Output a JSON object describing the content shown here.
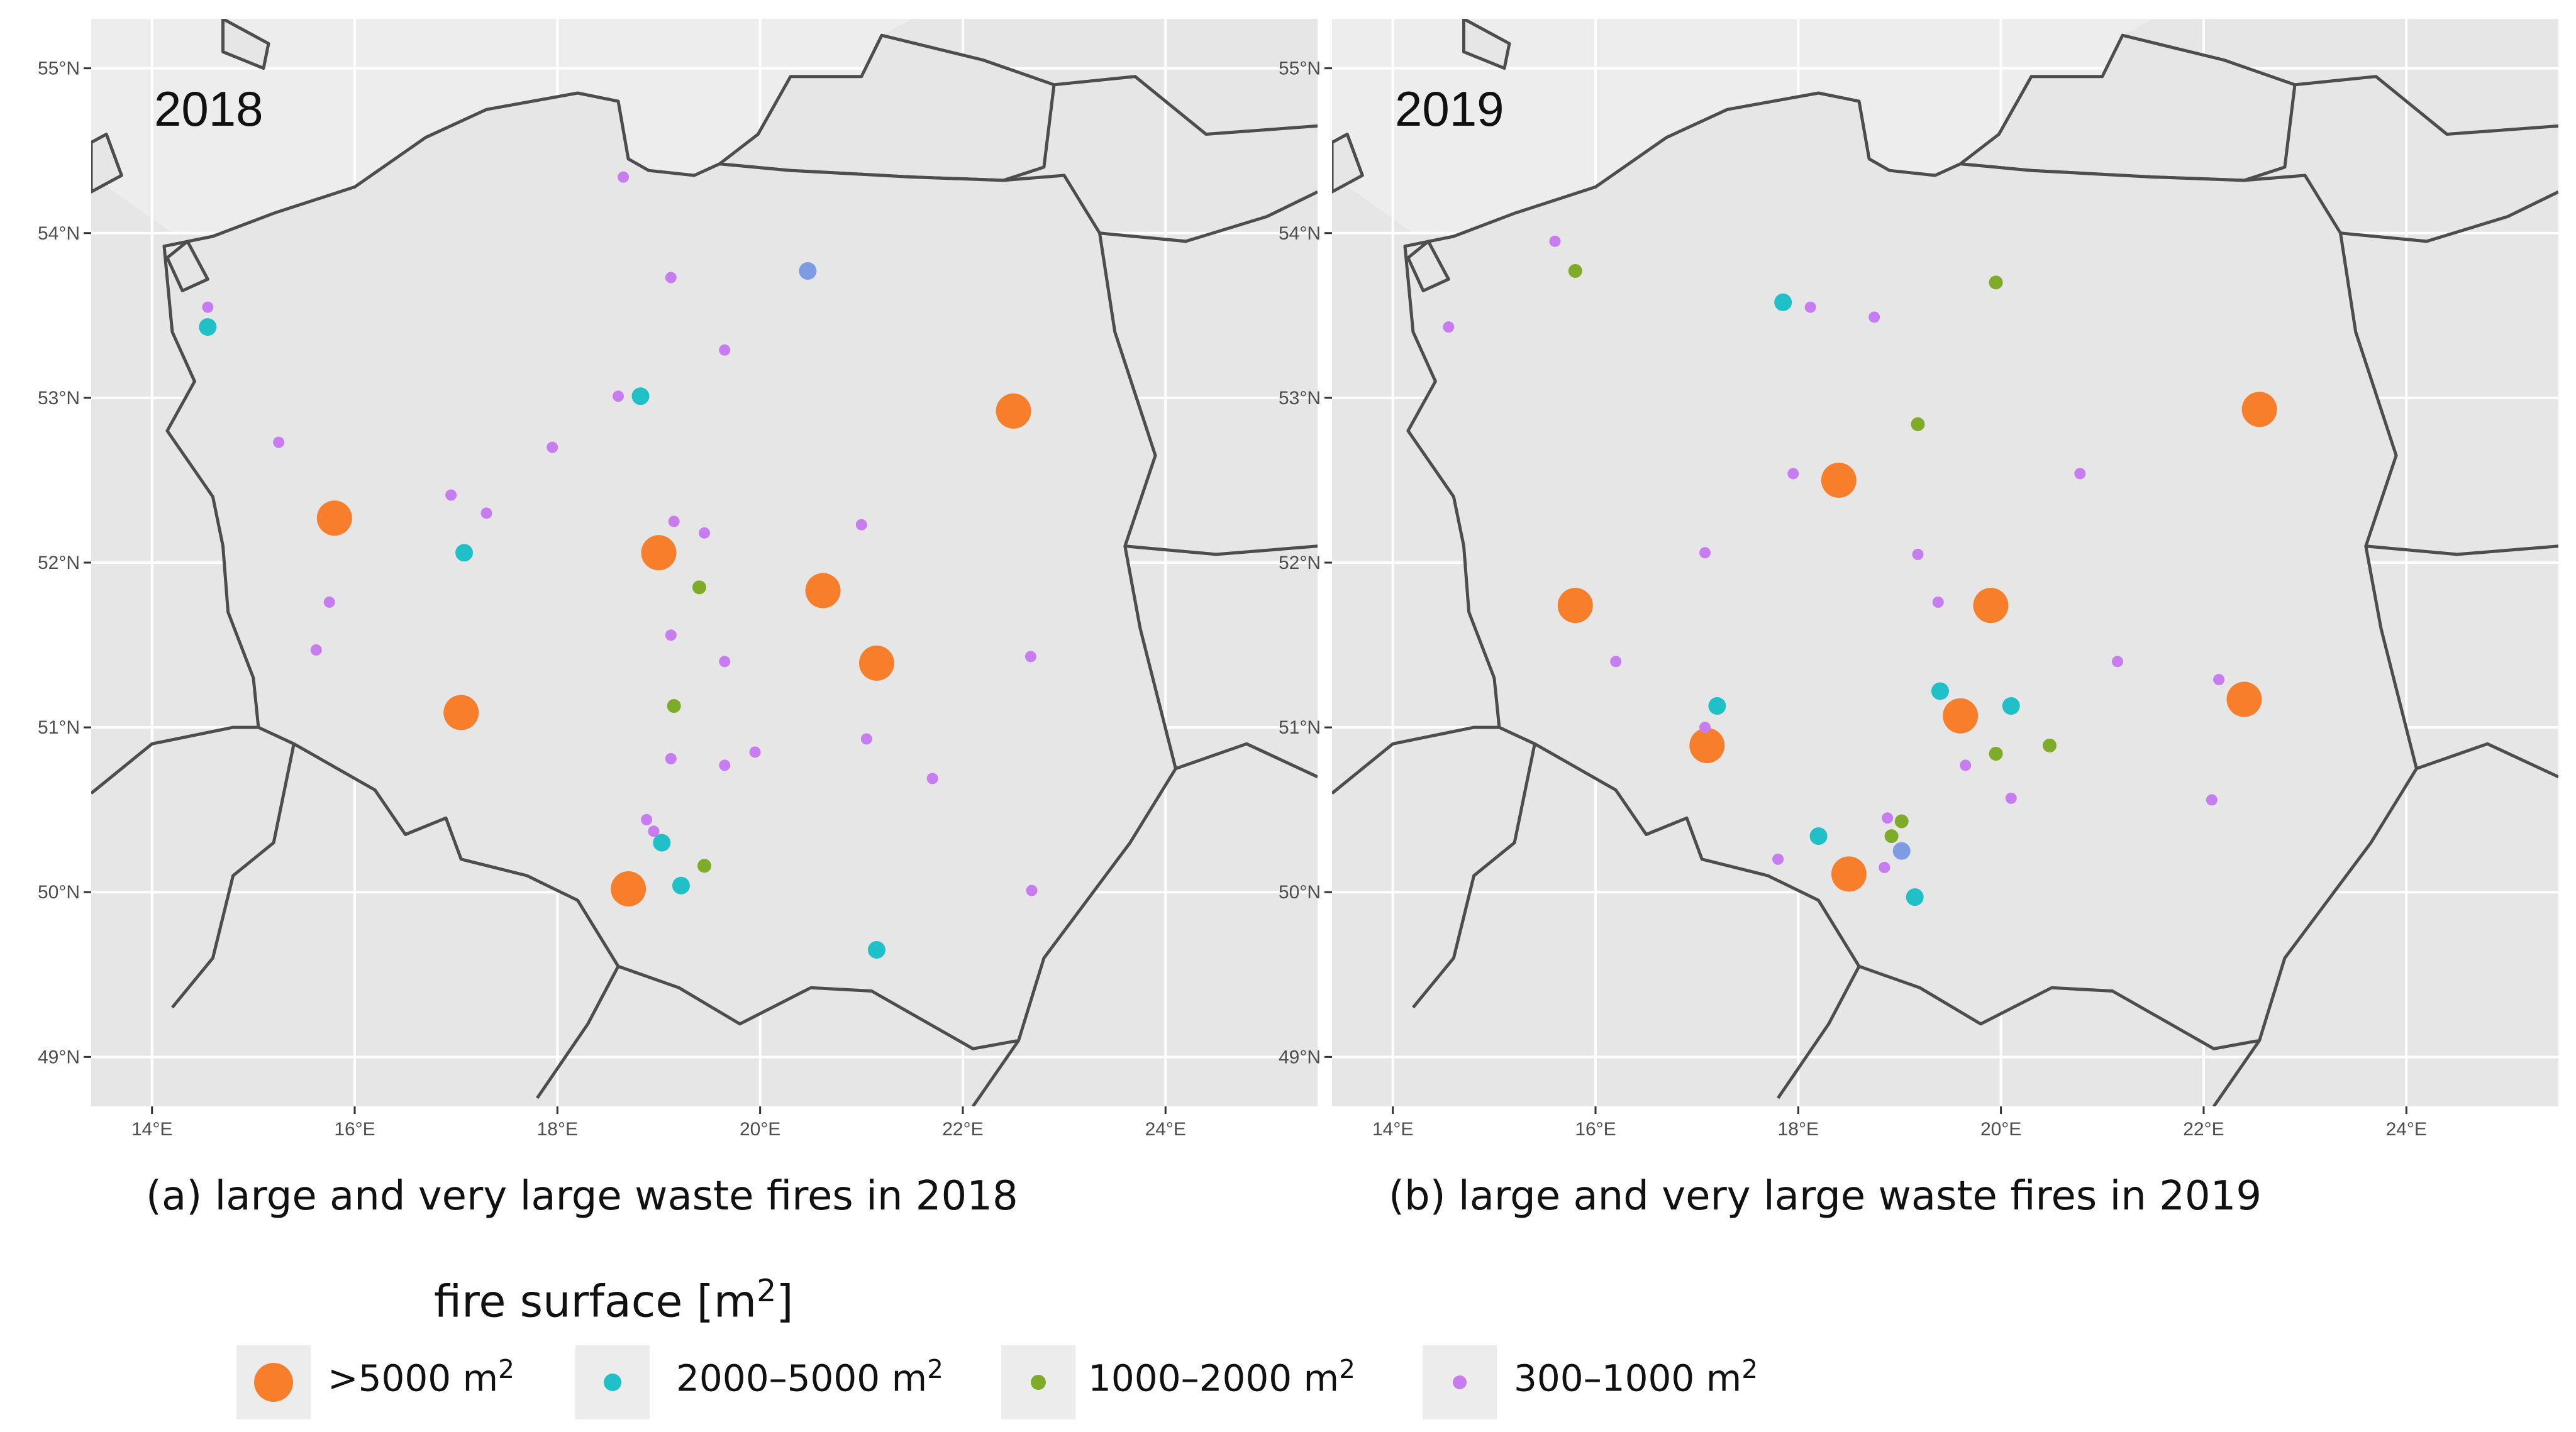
{
  "map": {
    "lon_range": [
      13.4,
      25.5
    ],
    "lat_range": [
      48.7,
      55.3
    ],
    "lon_ticks": [
      "14°E",
      "16°E",
      "18°E",
      "20°E",
      "22°E",
      "24°E"
    ],
    "lat_ticks": [
      "49°N",
      "50°N",
      "51°N",
      "52°N",
      "53°N",
      "54°N",
      "55°N"
    ],
    "colors": {
      "panel_bg": "#e6e6e6",
      "sea": "#ededed",
      "border": "#4d4d4d",
      "grid": "#ffffff"
    }
  },
  "panels": [
    {
      "year_label": "2018",
      "caption": "(a) large and very large waste fires in 2018",
      "fires": [
        {
          "lon": 15.8,
          "lat": 52.27,
          "class": "gt5000"
        },
        {
          "lon": 17.05,
          "lat": 51.09,
          "class": "gt5000"
        },
        {
          "lon": 19.0,
          "lat": 52.06,
          "class": "gt5000"
        },
        {
          "lon": 20.62,
          "lat": 51.83,
          "class": "gt5000"
        },
        {
          "lon": 21.15,
          "lat": 51.39,
          "class": "gt5000"
        },
        {
          "lon": 22.5,
          "lat": 52.92,
          "class": "gt5000"
        },
        {
          "lon": 18.7,
          "lat": 50.02,
          "class": "gt5000"
        },
        {
          "lon": 14.55,
          "lat": 53.43,
          "class": "c2000"
        },
        {
          "lon": 18.82,
          "lat": 53.01,
          "class": "c2000"
        },
        {
          "lon": 17.08,
          "lat": 52.06,
          "class": "c2000"
        },
        {
          "lon": 19.03,
          "lat": 50.3,
          "class": "c2000"
        },
        {
          "lon": 19.22,
          "lat": 50.04,
          "class": "c2000"
        },
        {
          "lon": 21.15,
          "lat": 49.65,
          "class": "c2000"
        },
        {
          "lon": 20.47,
          "lat": 53.77,
          "class": "mixed"
        },
        {
          "lon": 19.4,
          "lat": 51.85,
          "class": "c1000"
        },
        {
          "lon": 19.15,
          "lat": 51.13,
          "class": "c1000"
        },
        {
          "lon": 19.45,
          "lat": 50.16,
          "class": "c1000"
        },
        {
          "lon": 18.65,
          "lat": 54.34,
          "class": "c300"
        },
        {
          "lon": 14.55,
          "lat": 53.55,
          "class": "c300"
        },
        {
          "lon": 19.12,
          "lat": 53.73,
          "class": "c300"
        },
        {
          "lon": 19.65,
          "lat": 53.29,
          "class": "c300"
        },
        {
          "lon": 18.6,
          "lat": 53.01,
          "class": "c300"
        },
        {
          "lon": 15.25,
          "lat": 52.73,
          "class": "c300"
        },
        {
          "lon": 17.95,
          "lat": 52.7,
          "class": "c300"
        },
        {
          "lon": 16.95,
          "lat": 52.41,
          "class": "c300"
        },
        {
          "lon": 17.3,
          "lat": 52.3,
          "class": "c300"
        },
        {
          "lon": 19.15,
          "lat": 52.25,
          "class": "c300"
        },
        {
          "lon": 19.45,
          "lat": 52.18,
          "class": "c300"
        },
        {
          "lon": 21.0,
          "lat": 52.23,
          "class": "c300"
        },
        {
          "lon": 15.75,
          "lat": 51.76,
          "class": "c300"
        },
        {
          "lon": 15.62,
          "lat": 51.47,
          "class": "c300"
        },
        {
          "lon": 19.12,
          "lat": 51.56,
          "class": "c300"
        },
        {
          "lon": 19.65,
          "lat": 51.4,
          "class": "c300"
        },
        {
          "lon": 22.67,
          "lat": 51.43,
          "class": "c300"
        },
        {
          "lon": 21.05,
          "lat": 50.93,
          "class": "c300"
        },
        {
          "lon": 19.95,
          "lat": 50.85,
          "class": "c300"
        },
        {
          "lon": 19.12,
          "lat": 50.81,
          "class": "c300"
        },
        {
          "lon": 19.65,
          "lat": 50.77,
          "class": "c300"
        },
        {
          "lon": 21.7,
          "lat": 50.69,
          "class": "c300"
        },
        {
          "lon": 18.88,
          "lat": 50.44,
          "class": "c300"
        },
        {
          "lon": 18.95,
          "lat": 50.37,
          "class": "c300"
        },
        {
          "lon": 22.68,
          "lat": 50.01,
          "class": "c300"
        }
      ]
    },
    {
      "year_label": "2019",
      "caption": "(b) large and very large waste fires in 2019",
      "fires": [
        {
          "lon": 18.4,
          "lat": 52.5,
          "class": "gt5000"
        },
        {
          "lon": 15.8,
          "lat": 51.74,
          "class": "gt5000"
        },
        {
          "lon": 19.9,
          "lat": 51.74,
          "class": "gt5000"
        },
        {
          "lon": 17.1,
          "lat": 50.89,
          "class": "gt5000"
        },
        {
          "lon": 19.6,
          "lat": 51.07,
          "class": "gt5000"
        },
        {
          "lon": 22.4,
          "lat": 51.17,
          "class": "gt5000"
        },
        {
          "lon": 22.55,
          "lat": 52.93,
          "class": "gt5000"
        },
        {
          "lon": 18.5,
          "lat": 50.11,
          "class": "gt5000"
        },
        {
          "lon": 17.85,
          "lat": 53.58,
          "class": "c2000"
        },
        {
          "lon": 17.2,
          "lat": 51.13,
          "class": "c2000"
        },
        {
          "lon": 19.4,
          "lat": 51.22,
          "class": "c2000"
        },
        {
          "lon": 20.1,
          "lat": 51.13,
          "class": "c2000"
        },
        {
          "lon": 18.2,
          "lat": 50.34,
          "class": "c2000"
        },
        {
          "lon": 19.15,
          "lat": 49.97,
          "class": "c2000"
        },
        {
          "lon": 19.02,
          "lat": 50.25,
          "class": "mixed"
        },
        {
          "lon": 15.8,
          "lat": 53.77,
          "class": "c1000"
        },
        {
          "lon": 19.95,
          "lat": 53.7,
          "class": "c1000"
        },
        {
          "lon": 19.18,
          "lat": 52.84,
          "class": "c1000"
        },
        {
          "lon": 19.95,
          "lat": 50.84,
          "class": "c1000"
        },
        {
          "lon": 20.48,
          "lat": 50.89,
          "class": "c1000"
        },
        {
          "lon": 19.02,
          "lat": 50.43,
          "class": "c1000"
        },
        {
          "lon": 18.92,
          "lat": 50.34,
          "class": "c1000"
        },
        {
          "lon": 15.6,
          "lat": 53.95,
          "class": "c300"
        },
        {
          "lon": 14.55,
          "lat": 53.43,
          "class": "c300"
        },
        {
          "lon": 18.12,
          "lat": 53.55,
          "class": "c300"
        },
        {
          "lon": 18.75,
          "lat": 53.49,
          "class": "c300"
        },
        {
          "lon": 17.95,
          "lat": 52.54,
          "class": "c300"
        },
        {
          "lon": 20.78,
          "lat": 52.54,
          "class": "c300"
        },
        {
          "lon": 17.08,
          "lat": 52.06,
          "class": "c300"
        },
        {
          "lon": 19.18,
          "lat": 52.05,
          "class": "c300"
        },
        {
          "lon": 19.38,
          "lat": 51.76,
          "class": "c300"
        },
        {
          "lon": 16.2,
          "lat": 51.4,
          "class": "c300"
        },
        {
          "lon": 21.15,
          "lat": 51.4,
          "class": "c300"
        },
        {
          "lon": 22.15,
          "lat": 51.29,
          "class": "c300"
        },
        {
          "lon": 17.08,
          "lat": 51.0,
          "class": "c300"
        },
        {
          "lon": 19.65,
          "lat": 50.77,
          "class": "c300"
        },
        {
          "lon": 20.1,
          "lat": 50.57,
          "class": "c300"
        },
        {
          "lon": 22.08,
          "lat": 50.56,
          "class": "c300"
        },
        {
          "lon": 18.88,
          "lat": 50.45,
          "class": "c300"
        },
        {
          "lon": 17.8,
          "lat": 50.2,
          "class": "c300"
        },
        {
          "lon": 18.85,
          "lat": 50.15,
          "class": "c300"
        }
      ]
    }
  ],
  "legend": {
    "title": "fire surface [m",
    "title_sup": "2",
    "title_end": "]",
    "items": [
      {
        "class": "gt5000",
        "label": ">5000 m",
        "sup": "2",
        "color": "#f77f2b"
      },
      {
        "class": "c2000",
        "label": "2000–5000 m",
        "sup": "2",
        "color": "#1fc0c8"
      },
      {
        "class": "c1000",
        "label": "1000–2000 m",
        "sup": "2",
        "color": "#7fac28"
      },
      {
        "class": "c300",
        "label": "300–1000 m",
        "sup": "2",
        "color": "#c77cf0"
      }
    ],
    "mixed_color": "#7e9ce2"
  }
}
